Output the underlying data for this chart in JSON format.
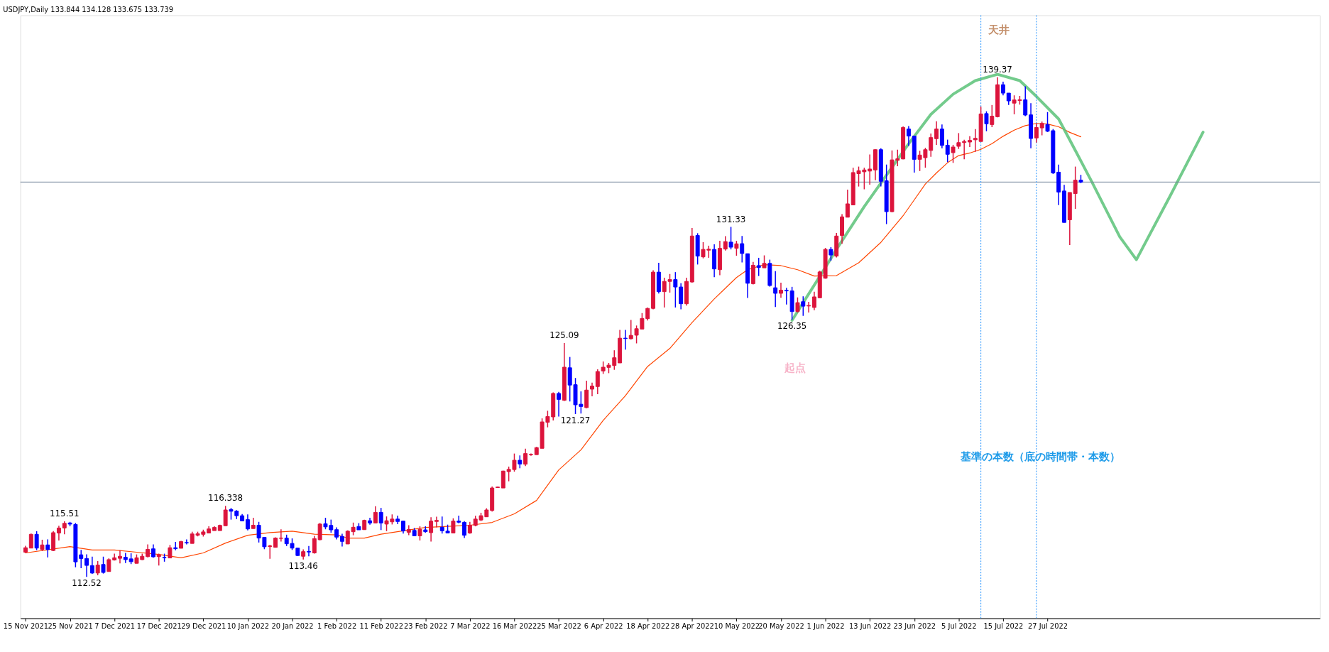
{
  "chart_data": {
    "type": "candlestick",
    "title": "USDJPY,Daily  133.844 134.128 133.675 133.739",
    "categories": [
      "15 Nov 2021",
      null,
      null,
      null,
      null,
      null,
      null,
      null,
      "25 Nov 2021",
      null,
      null,
      null,
      null,
      null,
      null,
      null,
      "7 Dec 2021",
      null,
      null,
      null,
      null,
      null,
      null,
      null,
      "17 Dec 2021",
      null,
      null,
      null,
      null,
      null,
      null,
      null,
      "29 Dec 2021",
      null,
      null,
      null,
      null,
      null,
      null,
      null,
      "10 Jan 2022",
      null,
      null,
      null,
      null,
      null,
      null,
      null,
      "20 Jan 2022",
      null,
      null,
      null,
      null,
      null,
      null,
      null,
      "1 Feb 2022",
      null,
      null,
      null,
      null,
      null,
      null,
      null,
      "11 Feb 2022",
      null,
      null,
      null,
      null,
      null,
      null,
      null,
      "23 Feb 2022",
      null,
      null,
      null,
      null,
      null,
      null,
      null,
      "7 Mar 2022",
      null,
      null,
      null,
      null,
      null,
      null,
      null,
      "16 Mar 2022",
      null,
      null,
      null,
      null,
      null,
      null,
      null,
      "25 Mar 2022",
      null,
      null,
      null,
      null,
      null,
      null,
      null,
      "6 Apr 2022",
      null,
      null,
      null,
      null,
      null,
      null,
      null,
      "18 Apr 2022",
      null,
      null,
      null,
      null,
      null,
      null,
      null,
      "28 Apr 2022",
      null,
      null,
      null,
      null,
      null,
      null,
      null,
      "10 May 2022",
      null,
      null,
      null,
      null,
      null,
      null,
      null,
      "20 May 2022",
      null,
      null,
      null,
      null,
      null,
      null,
      null,
      "1 Jun 2022",
      null,
      null,
      null,
      null,
      null,
      null,
      null,
      "13 Jun 2022",
      null,
      null,
      null,
      null,
      null,
      null,
      null,
      "23 Jun 2022",
      null,
      null,
      null,
      null,
      null,
      null,
      null,
      "5 Jul 2022",
      null,
      null,
      null,
      null,
      null,
      null,
      null,
      "15 Jul 2022",
      null,
      null,
      null,
      null,
      null,
      null,
      null,
      "27 Jul 2022",
      null,
      null,
      null,
      null,
      null,
      null,
      null,
      null,
      null,
      null,
      null,
      null,
      null,
      null,
      null,
      null,
      null,
      null,
      null,
      null,
      null,
      null,
      null,
      null,
      null,
      null,
      null,
      null,
      null,
      null,
      null,
      null,
      null,
      null,
      null,
      null,
      null,
      null,
      null,
      null,
      null,
      null,
      null,
      null,
      null,
      null,
      null,
      null
    ],
    "ohlc": [
      [
        113.85,
        114.19,
        113.81,
        114.09
      ],
      [
        114.07,
        114.85,
        114.07,
        114.81
      ],
      [
        114.81,
        114.98,
        113.96,
        114.07
      ],
      [
        114,
        114.52,
        113.91,
        114.24
      ],
      [
        114.24,
        114.54,
        113.57,
        114
      ],
      [
        113.94,
        114.98,
        113.91,
        114.9
      ],
      [
        114.88,
        115.27,
        114.48,
        115.15
      ],
      [
        115.15,
        115.51,
        114.81,
        115.4
      ],
      [
        115.42,
        115.48,
        115.24,
        115.36
      ],
      [
        115.34,
        115.42,
        113.04,
        113.33
      ],
      [
        113.71,
        113.97,
        112.99,
        113.51
      ],
      [
        113.51,
        113.73,
        112.52,
        113.14
      ],
      [
        113.13,
        113.61,
        112.68,
        112.73
      ],
      [
        112.73,
        113.37,
        112.61,
        113.16
      ],
      [
        113.19,
        113.61,
        112.7,
        112.76
      ],
      [
        112.81,
        113.52,
        112.81,
        113.45
      ],
      [
        113.43,
        113.77,
        113.4,
        113.55
      ],
      [
        113.52,
        113.95,
        113.25,
        113.63
      ],
      [
        113.58,
        113.81,
        113.27,
        113.45
      ],
      [
        113.49,
        113.79,
        113.21,
        113.34
      ],
      [
        113.25,
        113.73,
        113.25,
        113.55
      ],
      [
        113.45,
        113.77,
        113.43,
        113.63
      ],
      [
        113.61,
        114.27,
        113.57,
        114
      ],
      [
        114.03,
        114.27,
        113.55,
        113.6
      ],
      [
        113.61,
        113.77,
        113.13,
        113.71
      ],
      [
        113.57,
        113.77,
        113.34,
        113.55
      ],
      [
        113.54,
        114.24,
        113.54,
        114.09
      ],
      [
        114.09,
        114.4,
        113.95,
        114.04
      ],
      [
        114.06,
        114.46,
        114.06,
        114.42
      ],
      [
        114.37,
        114.54,
        114.27,
        114.35
      ],
      [
        114.32,
        114.95,
        114.32,
        114.83
      ],
      [
        114.76,
        114.95,
        114.7,
        114.84
      ],
      [
        114.81,
        115.06,
        114.69,
        114.94
      ],
      [
        114.88,
        115.24,
        114.88,
        115.1
      ],
      [
        115.01,
        115.24,
        115.01,
        115.18
      ],
      [
        115.01,
        115.33,
        115.01,
        115.29
      ],
      [
        115.27,
        116.338,
        115.27,
        116.12
      ],
      [
        116.14,
        116.23,
        115.6,
        116.05
      ],
      [
        116.06,
        116.11,
        115.63,
        115.81
      ],
      [
        115.81,
        115.9,
        115.52,
        115.53
      ],
      [
        115.6,
        115.88,
        115.02,
        115.1
      ],
      [
        115.12,
        115.7,
        115.12,
        115.3
      ],
      [
        115.3,
        115.48,
        114.37,
        114.61
      ],
      [
        114.65,
        114.65,
        114.01,
        114.14
      ],
      [
        114.15,
        114.25,
        113.5,
        114.19
      ],
      [
        114.11,
        114.65,
        114.11,
        114.61
      ],
      [
        114.59,
        115.08,
        114.42,
        114.61
      ],
      [
        114.61,
        114.79,
        114.18,
        114.3
      ],
      [
        114.32,
        114.59,
        113.97,
        114.07
      ],
      [
        114.07,
        114.07,
        113.65,
        113.67
      ],
      [
        113.63,
        114,
        113.46,
        113.88
      ],
      [
        113.89,
        114.18,
        113.63,
        113.86
      ],
      [
        113.81,
        114.73,
        113.77,
        114.58
      ],
      [
        114.52,
        115.42,
        114.49,
        115.36
      ],
      [
        115.38,
        115.7,
        115.08,
        115.21
      ],
      [
        115.29,
        115.6,
        114.9,
        115.05
      ],
      [
        115.06,
        115.18,
        114.54,
        114.66
      ],
      [
        114.7,
        114.84,
        114.15,
        114.43
      ],
      [
        114.29,
        115.02,
        114.29,
        114.98
      ],
      [
        114.95,
        115.44,
        114.76,
        115.19
      ],
      [
        115.23,
        115.41,
        115.05,
        115.05
      ],
      [
        115.06,
        115.59,
        115.06,
        115.56
      ],
      [
        115.54,
        115.7,
        115.33,
        115.42
      ],
      [
        115.42,
        116.32,
        115.42,
        115.99
      ],
      [
        115.99,
        116.23,
        115.04,
        115.42
      ],
      [
        115.36,
        115.77,
        114.98,
        115.54
      ],
      [
        115.48,
        115.88,
        115.34,
        115.63
      ],
      [
        115.63,
        115.81,
        115.36,
        115.5
      ],
      [
        115.52,
        115.54,
        114.85,
        114.99
      ],
      [
        114.92,
        115.3,
        114.76,
        115.07
      ],
      [
        115.02,
        115.15,
        114.73,
        114.73
      ],
      [
        114.73,
        115.24,
        114.48,
        115.08
      ],
      [
        115.05,
        115.24,
        114.9,
        114.95
      ],
      [
        114.9,
        115.73,
        114.42,
        115.52
      ],
      [
        115.5,
        115.76,
        115.18,
        115.56
      ],
      [
        115.19,
        115.77,
        114.85,
        115
      ],
      [
        114.98,
        115.33,
        114.88,
        114.88
      ],
      [
        114.88,
        115.67,
        114.88,
        115.52
      ],
      [
        115.52,
        115.81,
        115.4,
        115.46
      ],
      [
        115.45,
        115.52,
        114.61,
        114.76
      ],
      [
        114.88,
        115.48,
        114.84,
        115.3
      ],
      [
        115.29,
        115.81,
        115.24,
        115.63
      ],
      [
        115.58,
        115.97,
        115.52,
        115.81
      ],
      [
        115.75,
        116.21,
        115.75,
        116.12
      ],
      [
        116.09,
        117.38,
        116.03,
        117.3
      ],
      [
        117.32,
        117.38,
        117.3,
        117.35
      ],
      [
        117.3,
        118.23,
        117.3,
        118.21
      ],
      [
        118.18,
        118.45,
        117.66,
        118.3
      ],
      [
        118.29,
        119.15,
        118.18,
        118.79
      ],
      [
        118.79,
        119.05,
        118.36,
        118.59
      ],
      [
        118.58,
        119.41,
        118.48,
        119.15
      ],
      [
        119.09,
        119.15,
        119.03,
        119.11
      ],
      [
        119.09,
        119.51,
        119.09,
        119.47
      ],
      [
        119.43,
        121.04,
        119.43,
        120.85
      ],
      [
        120.83,
        121.45,
        120.56,
        121.14
      ],
      [
        121.12,
        122.44,
        120.93,
        122.38
      ],
      [
        122.38,
        122.46,
        121.14,
        122.06
      ],
      [
        122.01,
        125.09,
        121.98,
        123.79
      ],
      [
        123.76,
        124.34,
        121.95,
        122.83
      ],
      [
        122.85,
        123.21,
        121.27,
        121.77
      ],
      [
        121.8,
        122.49,
        121.3,
        121.68
      ],
      [
        121.62,
        123.07,
        121.59,
        122.56
      ],
      [
        122.61,
        122.96,
        122.23,
        122.78
      ],
      [
        122.75,
        123.68,
        122.34,
        123.56
      ],
      [
        123.59,
        124.1,
        123.43,
        123.79
      ],
      [
        123.78,
        124.02,
        123.47,
        123.9
      ],
      [
        123.88,
        124.7,
        123.65,
        124.3
      ],
      [
        124.02,
        125.79,
        124.02,
        125.35
      ],
      [
        125.35,
        125.79,
        124.74,
        125.33
      ],
      [
        125.32,
        126.33,
        125.28,
        125.5
      ],
      [
        125.51,
        126.03,
        125.07,
        125.86
      ],
      [
        125.84,
        126.7,
        125.84,
        126.41
      ],
      [
        126.4,
        127,
        126.3,
        126.95
      ],
      [
        126.95,
        129,
        126.9,
        128.9
      ],
      [
        128.9,
        129.4,
        127.75,
        127.85
      ],
      [
        127.85,
        128.6,
        127,
        128.4
      ],
      [
        128.4,
        128.8,
        127.8,
        128.5
      ],
      [
        128.5,
        128.9,
        127,
        128.1
      ],
      [
        128.1,
        128.3,
        126.9,
        127.2
      ],
      [
        127.2,
        128.6,
        127.1,
        128.4
      ],
      [
        128.37,
        131.27,
        128.33,
        130.84
      ],
      [
        130.87,
        130.99,
        129.31,
        129.76
      ],
      [
        129.72,
        130.51,
        129.64,
        130.12
      ],
      [
        130.08,
        130.32,
        129.67,
        130.13
      ],
      [
        130.12,
        130.39,
        128.63,
        129.07
      ],
      [
        129.03,
        130.58,
        128.73,
        130.18
      ],
      [
        130.14,
        130.83,
        130.06,
        130.54
      ],
      [
        130.51,
        131.33,
        130.12,
        130.24
      ],
      [
        130.18,
        130.58,
        129.78,
        130.42
      ],
      [
        130.43,
        130.84,
        129.42,
        129.9
      ],
      [
        129.89,
        129.89,
        127.51,
        128.3
      ],
      [
        128.28,
        129.45,
        128.24,
        129.27
      ],
      [
        129.25,
        129.67,
        128.69,
        129.15
      ],
      [
        129.13,
        129.8,
        129.13,
        129.37
      ],
      [
        129.37,
        129.57,
        128.12,
        128.18
      ],
      [
        128.06,
        128.95,
        127.03,
        127.76
      ],
      [
        127.76,
        128.33,
        127.52,
        127.93
      ],
      [
        127.92,
        128.06,
        127.16,
        127.89
      ],
      [
        127.89,
        128.11,
        126.35,
        126.78
      ],
      [
        126.78,
        127.54,
        126.73,
        127.26
      ],
      [
        127.31,
        127.6,
        126.55,
        127.07
      ],
      [
        127.08,
        127.3,
        126.73,
        127.11
      ],
      [
        127,
        127.85,
        126.85,
        127.57
      ],
      [
        127.52,
        128.97,
        127.52,
        128.91
      ],
      [
        128.57,
        130.2,
        128.55,
        130.12
      ],
      [
        130.12,
        130.24,
        129.51,
        129.82
      ],
      [
        129.76,
        131,
        129.69,
        130.84
      ],
      [
        130.87,
        132.02,
        130.42,
        131.87
      ],
      [
        131.85,
        133.33,
        131.85,
        132.57
      ],
      [
        132.51,
        134.51,
        132.51,
        134.25
      ],
      [
        134.19,
        134.57,
        133.5,
        134.35
      ],
      [
        134.29,
        134.51,
        133.35,
        134.39
      ],
      [
        134.33,
        135.22,
        133.6,
        134.44
      ],
      [
        134.39,
        135.5,
        133.84,
        135.48
      ],
      [
        135.48,
        135.56,
        133.5,
        133.78
      ],
      [
        133.81,
        134.68,
        131.48,
        132.15
      ],
      [
        132.15,
        135.44,
        132.11,
        134.93
      ],
      [
        134.91,
        135.48,
        134.59,
        134.99
      ],
      [
        134.98,
        136.73,
        134.96,
        136.67
      ],
      [
        136.59,
        136.75,
        135.68,
        136.21
      ],
      [
        136.21,
        136.21,
        134.25,
        134.96
      ],
      [
        134.96,
        135.42,
        134.33,
        135.19
      ],
      [
        135.05,
        135.58,
        134.51,
        135.48
      ],
      [
        135.44,
        136.35,
        135.1,
        136.13
      ],
      [
        136.07,
        137.01,
        135.74,
        136.59
      ],
      [
        136.59,
        136.83,
        135.56,
        135.71
      ],
      [
        135.72,
        136.02,
        134.81,
        135.23
      ],
      [
        135.32,
        135.74,
        134.77,
        135.62
      ],
      [
        135.66,
        136.37,
        135.52,
        135.86
      ],
      [
        135.86,
        136.01,
        134.96,
        135.92
      ],
      [
        135.89,
        136.2,
        135.62,
        135.98
      ],
      [
        136.01,
        136.59,
        135.36,
        136.09
      ],
      [
        135.92,
        137.8,
        135.92,
        137.4
      ],
      [
        137.42,
        137.54,
        136.47,
        136.87
      ],
      [
        136.83,
        137.88,
        136.69,
        137.28
      ],
      [
        137.25,
        139.37,
        137.22,
        138.97
      ],
      [
        138.97,
        139.13,
        138.4,
        138.52
      ],
      [
        138.52,
        138.52,
        137.88,
        138.1
      ],
      [
        137.98,
        138.4,
        137.38,
        138.15
      ],
      [
        138.12,
        138.37,
        137.9,
        138.16
      ],
      [
        138.16,
        138.89,
        137.28,
        137.34
      ],
      [
        137.35,
        137.98,
        135.56,
        136.08
      ],
      [
        136.11,
        136.89,
        135.86,
        136.67
      ],
      [
        136.65,
        136.99,
        136.25,
        136.89
      ],
      [
        136.83,
        137.5,
        136.43,
        136.47
      ],
      [
        136.5,
        136.59,
        134.17,
        134.23
      ],
      [
        134.27,
        134.68,
        132.5,
        133.2
      ],
      [
        133.26,
        133.59,
        131.57,
        131.57
      ],
      [
        131.71,
        133.18,
        130.36,
        133.18
      ],
      [
        133.12,
        134.57,
        132.3,
        133.84
      ],
      [
        133.844,
        134.128,
        133.675,
        133.739
      ],
      null,
      null,
      null,
      null,
      null,
      null,
      null,
      null,
      null,
      null,
      null,
      null,
      null,
      null,
      null,
      null,
      null,
      null,
      null,
      null,
      null,
      null,
      null,
      null,
      null,
      null,
      null,
      null,
      null,
      null,
      null,
      null,
      null,
      null,
      null,
      null,
      null,
      null,
      null,
      null,
      null,
      null
    ],
    "colors": [
      "#dc143c",
      "#dc143c",
      "#0000ff",
      "#dc143c",
      "#0000ff",
      "#dc143c",
      "#dc143c",
      "#dc143c",
      "#0000ff",
      "#0000ff",
      "#0000ff",
      "#0000ff",
      "#0000ff",
      "#dc143c",
      "#0000ff",
      "#dc143c",
      "#dc143c",
      "#dc143c",
      "#0000ff",
      "#0000ff",
      "#dc143c",
      "#dc143c",
      "#dc143c",
      "#0000ff",
      "#dc143c",
      "#0000ff",
      "#dc143c",
      "#0000ff",
      "#dc143c",
      "#0000ff",
      "#dc143c",
      "#dc143c",
      "#dc143c",
      "#dc143c",
      "#dc143c",
      "#dc143c",
      "#dc143c",
      "#0000ff",
      "#0000ff",
      "#0000ff",
      "#0000ff",
      "#dc143c",
      "#0000ff",
      "#0000ff",
      "#dc143c",
      "#dc143c",
      "#dc143c",
      "#0000ff",
      "#0000ff",
      "#0000ff",
      "#dc143c",
      "#0000ff",
      "#dc143c",
      "#dc143c",
      "#0000ff",
      "#0000ff",
      "#0000ff",
      "#0000ff",
      "#dc143c",
      "#dc143c",
      "#0000ff",
      "#dc143c",
      "#0000ff",
      "#dc143c",
      "#0000ff",
      "#dc143c",
      "#dc143c",
      "#0000ff",
      "#0000ff",
      "#dc143c",
      "#0000ff",
      "#dc143c",
      "#0000ff",
      "#dc143c",
      "#dc143c",
      "#0000ff",
      "#0000ff",
      "#dc143c",
      "#0000ff",
      "#0000ff",
      "#dc143c",
      "#dc143c",
      "#dc143c",
      "#dc143c",
      "#dc143c",
      "#dc143c",
      "#dc143c",
      "#dc143c",
      "#dc143c",
      "#0000ff",
      "#dc143c",
      "#dc143c",
      "#dc143c",
      "#dc143c",
      "#dc143c",
      "#dc143c",
      "#0000ff",
      "#dc143c",
      "#0000ff",
      "#0000ff",
      "#0000ff",
      "#dc143c",
      "#dc143c",
      "#dc143c",
      "#dc143c",
      "#dc143c",
      "#dc143c",
      "#dc143c",
      "#0000ff",
      "#dc143c",
      "#dc143c",
      "#dc143c",
      "#dc143c",
      "#dc143c",
      "#0000ff",
      "#dc143c",
      "#dc143c",
      "#0000ff",
      "#0000ff",
      "#dc143c",
      "#dc143c",
      "#0000ff",
      "#dc143c",
      "#dc143c",
      "#0000ff",
      "#dc143c",
      "#dc143c",
      "#0000ff",
      "#dc143c",
      "#0000ff",
      "#0000ff",
      "#dc143c",
      "#0000ff",
      "#dc143c",
      "#0000ff",
      "#0000ff",
      "#dc143c",
      "#0000ff",
      "#0000ff",
      "#dc143c",
      "#0000ff",
      "#dc143c",
      "#dc143c",
      "#dc143c",
      "#dc143c",
      "#0000ff",
      "#dc143c",
      "#dc143c",
      "#dc143c",
      "#dc143c",
      "#dc143c",
      "#dc143c",
      "#dc143c",
      "#dc143c",
      "#0000ff",
      "#0000ff",
      "#dc143c",
      "#dc143c",
      "#dc143c",
      "#0000ff",
      "#0000ff",
      "#dc143c",
      "#dc143c",
      "#dc143c",
      "#dc143c",
      "#0000ff",
      "#0000ff",
      "#dc143c",
      "#dc143c",
      "#dc143c",
      "#dc143c",
      "#dc143c",
      "#dc143c",
      "#0000ff",
      "#dc143c",
      "#dc143c",
      "#0000ff",
      "#0000ff",
      "#dc143c",
      "#dc143c",
      "#0000ff",
      "#0000ff",
      "#dc143c",
      "#dc143c",
      "#0000ff",
      "#0000ff",
      "#0000ff",
      "#0000ff",
      "#dc143c",
      "#dc143c",
      "#0000ff",
      null,
      null,
      null,
      null,
      null,
      null,
      null,
      null,
      null,
      null,
      null,
      null,
      null,
      null,
      null,
      null,
      null,
      null,
      null,
      null,
      null,
      null,
      null,
      null,
      null,
      null,
      null,
      null,
      null,
      null,
      null,
      null,
      null,
      null,
      null,
      null,
      null,
      null,
      null,
      null,
      null,
      null
    ],
    "series": [
      {
        "type": "line",
        "color": "#ff4500",
        "values": [
          113.81,
          null,
          null,
          null,
          null,
          null,
          null,
          null,
          114.15,
          null,
          null,
          null,
          113.97,
          null,
          null,
          null,
          113.97,
          null,
          null,
          null,
          113.85,
          null,
          null,
          null,
          113.73,
          null,
          null,
          null,
          113.55,
          null,
          null,
          null,
          113.81,
          null,
          null,
          null,
          114.34,
          null,
          null,
          null,
          114.76,
          null,
          null,
          null,
          114.9,
          null,
          null,
          null,
          114.98,
          null,
          null,
          null,
          114.82,
          null,
          null,
          null,
          114.78,
          null,
          114.61,
          null,
          null,
          114.61,
          null,
          null,
          114.82,
          null,
          null,
          null,
          115.0,
          null,
          null,
          null,
          115.18,
          null,
          null,
          null,
          115.24,
          null,
          null,
          null,
          115.3,
          null,
          null,
          null,
          115.45,
          null,
          null,
          null,
          115.91,
          null,
          null,
          null,
          116.63,
          null,
          null,
          null,
          118.27,
          null,
          null,
          null,
          119.35,
          null,
          null,
          null,
          120.93,
          null,
          null,
          null,
          122.26,
          null,
          null,
          null,
          123.83,
          null,
          null,
          null,
          124.8,
          null,
          null,
          null,
          126.19,
          null,
          null,
          null,
          127.46,
          null,
          null,
          null,
          128.61,
          null,
          129.03,
          null,
          null,
          129.3,
          null,
          null,
          129.25,
          null,
          null,
          129.03,
          null,
          null,
          128.69,
          null,
          null,
          null,
          128.71,
          null,
          null,
          null,
          129.4,
          null,
          null,
          null,
          130.5,
          null,
          null,
          null,
          131.93,
          null,
          132.78,
          null,
          133.63,
          null,
          134.23,
          null,
          134.78,
          null,
          135.16,
          null,
          135.3,
          null,
          135.5,
          null,
          135.8,
          null,
          136.2,
          null,
          136.53,
          null,
          136.77,
          null,
          136.89,
          null,
          136.86,
          null,
          136.71,
          null,
          136.41,
          null,
          136.17,
          null,
          null,
          null,
          null,
          null,
          null,
          null,
          null,
          null,
          null,
          null,
          null,
          null,
          null,
          null,
          null,
          null,
          null,
          null,
          null,
          null,
          null,
          null,
          null,
          null,
          null,
          null,
          null,
          null,
          null,
          null,
          null,
          null,
          null,
          null,
          null,
          null,
          null,
          null,
          null,
          null,
          null
        ]
      },
      {
        "type": "line",
        "color": "#5ac278",
        "values": [
          null,
          null,
          null,
          null,
          null,
          null,
          null,
          null,
          null,
          null,
          null,
          null,
          null,
          null,
          null,
          null,
          null,
          null,
          null,
          null,
          null,
          null,
          null,
          null,
          null,
          null,
          null,
          null,
          null,
          null,
          null,
          null,
          null,
          null,
          null,
          null,
          null,
          null,
          null,
          null,
          null,
          null,
          null,
          null,
          null,
          null,
          null,
          null,
          null,
          null,
          null,
          null,
          null,
          null,
          null,
          null,
          null,
          null,
          null,
          null,
          null,
          null,
          null,
          null,
          null,
          null,
          null,
          null,
          null,
          null,
          null,
          null,
          null,
          null,
          null,
          null,
          null,
          null,
          null,
          null,
          null,
          null,
          null,
          null,
          null,
          null,
          null,
          null,
          null,
          null,
          null,
          null,
          null,
          null,
          null,
          null,
          null,
          null,
          null,
          null,
          null,
          null,
          null,
          null,
          null,
          null,
          null,
          null,
          null,
          null,
          null,
          null,
          null,
          null,
          null,
          null,
          null,
          null,
          null,
          null,
          null,
          null,
          null,
          null,
          null,
          null,
          null,
          null,
          null,
          null,
          null,
          null,
          null,
          null,
          null,
          null,
          null,
          null,
          126.31,
          null,
          null,
          null,
          null,
          128.67,
          null,
          null,
          130.12,
          null,
          null,
          null,
          null,
          132.42,
          null,
          null,
          null,
          134.11,
          null,
          null,
          null,
          135.8,
          null,
          null,
          null,
          137.38,
          null,
          null,
          null,
          138.46,
          null,
          null,
          null,
          139.19,
          null,
          null,
          null,
          139.53,
          null,
          null,
          null,
          139.19,
          null,
          null,
          138.34,
          null,
          null,
          null,
          137.13,
          null,
          null,
          135.44,
          null,
          null,
          133.74,
          null,
          null,
          null,
          null,
          130.8,
          null,
          null,
          129.57,
          null,
          null,
          null,
          null,
          null,
          132.95,
          null,
          null,
          null,
          null,
          null,
          136.42,
          null,
          null,
          null,
          null,
          null,
          null,
          null,
          null,
          null,
          null,
          null,
          null,
          null,
          null,
          null,
          null,
          null,
          null,
          null,
          null
        ]
      }
    ],
    "ylim": [
      110.3,
      142.7
    ],
    "tick_labels": "x",
    "ref_lines": [
      {
        "axis": "y",
        "value": 133.739,
        "color": "#6f8296"
      }
    ],
    "annotations": [
      {
        "text": "115.51",
        "y": 115.51
      },
      {
        "text": "112.52",
        "y": 112.52
      },
      {
        "text": "116.338",
        "y": 116.338
      },
      {
        "text": "113.46",
        "y": 113.46
      },
      {
        "text": "125.09",
        "y": 125.09
      },
      {
        "text": "121.27",
        "y": 121.27
      },
      {
        "text": "131.33",
        "y": 131.33
      },
      {
        "text": "126.35",
        "y": 126.35
      },
      {
        "text": "139.37",
        "y": 139.37
      },
      "天井",
      "起点",
      "基準の本数（底の時間帯・本数）"
    ]
  }
}
